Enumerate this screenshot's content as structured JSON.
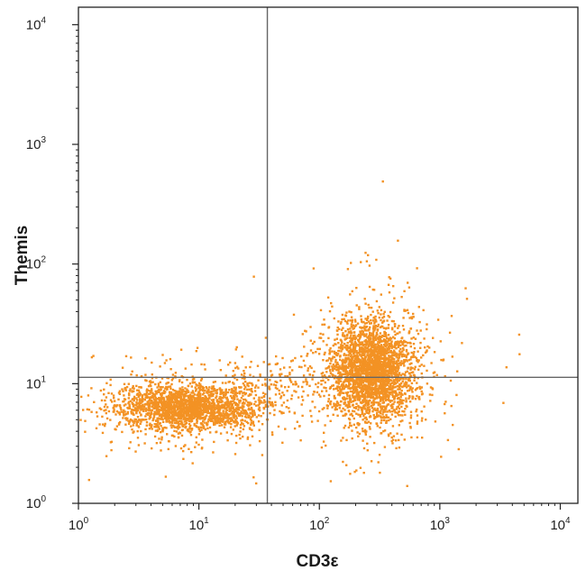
{
  "chart_data": {
    "type": "scatter",
    "title": "",
    "xlabel": "CD3ε",
    "ylabel": "Themis",
    "x_scale": "log",
    "y_scale": "log",
    "xlim": [
      1,
      14000
    ],
    "ylim": [
      1,
      14000
    ],
    "x_ticks": [
      {
        "base": "10",
        "exp": "0"
      },
      {
        "base": "10",
        "exp": "1"
      },
      {
        "base": "10",
        "exp": "2"
      },
      {
        "base": "10",
        "exp": "3"
      },
      {
        "base": "10",
        "exp": "4"
      }
    ],
    "y_ticks": [
      {
        "base": "10",
        "exp": "0"
      },
      {
        "base": "10",
        "exp": "1"
      },
      {
        "base": "10",
        "exp": "2"
      },
      {
        "base": "10",
        "exp": "3"
      },
      {
        "base": "10",
        "exp": "4"
      }
    ],
    "quadrant_gates": {
      "x": 37,
      "y": 11.3
    },
    "grid": false,
    "point_color": "#F39224",
    "gate_color": "#666666",
    "populations": [
      {
        "name": "",
        "center": [
          8,
          6.5
        ],
        "approx_events": 2200
      },
      {
        "name": "",
        "center": [
          270,
          11
        ],
        "approx_events": 2800
      }
    ],
    "outliers": [
      [
        330,
        500
      ],
      [
        440,
        160
      ],
      [
        4500,
        18
      ],
      [
        3500,
        14
      ],
      [
        1.2,
        1.6
      ],
      [
        28,
        80
      ]
    ]
  }
}
